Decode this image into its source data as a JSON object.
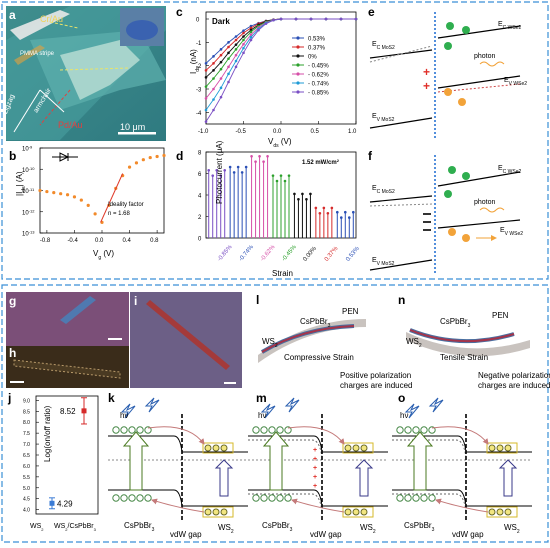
{
  "panels": {
    "a": {
      "label": "a",
      "texts": {
        "crau": "Cr/Au",
        "pmma": "PMMA stripe",
        "zigzag": "zigzag",
        "armchair": "armchair",
        "pdau": "Pd/Au",
        "scale": "10 μm"
      }
    },
    "b": {
      "label": "b",
      "ylabel": "|I",
      "ylabel_sub": "ds",
      "ylabel_tail": "| (A)",
      "xlabel": "V",
      "xlabel_sub": "g",
      "xlabel_tail": " (V)",
      "yticks": [
        "10",
        "10",
        "10",
        "10",
        "10"
      ],
      "ytick_exps": [
        "-9",
        "-10",
        "-11",
        "-12",
        "-13"
      ],
      "xticks": [
        "-0.8",
        "-0.4",
        "0.0",
        "0.4",
        "0.8"
      ],
      "annotation_line1": "Ideality factor",
      "annotation_line2": "n = 1.68"
    },
    "c": {
      "label": "c",
      "title": "Dark",
      "ylabel": "I",
      "ylabel_sub": "ds",
      "ylabel_tail": " (nA)",
      "xlabel": "V",
      "xlabel_sub": "ds",
      "xlabel_tail": " (V)",
      "yticks": [
        "0",
        "-1",
        "-2",
        "-3",
        "-4"
      ],
      "xticks": [
        "-1.0",
        "-0.5",
        "0.0",
        "0.5",
        "1.0"
      ]
    },
    "d": {
      "label": "d",
      "power": "1.52 mW/cm",
      "power_sup": "2",
      "ylabel": "Photocurrent (μA)",
      "xlabel": "Strain",
      "yticks": [
        "0",
        "2",
        "4",
        "6",
        "8"
      ],
      "categories": [
        "-0.85%",
        "-0.74%",
        "-0.62%",
        "-0.45%",
        "0.00%",
        "0.37%",
        "0.53%"
      ]
    },
    "e": {
      "label": "e",
      "ec_mos2": "E",
      "ec_mos2_sub": "C MoS2",
      "ec_wse2": "E",
      "ec_wse2_sub": "C WSe2",
      "ev_wse2": "E",
      "ev_wse2_sub": "V WSe2",
      "ev_mos2": "E",
      "ev_mos2_sub": "V MoS2",
      "photon": "photon"
    },
    "f": {
      "label": "f",
      "ec_mos2": "E",
      "ec_mos2_sub": "C MoS2",
      "ec_wse2": "E",
      "ec_wse2_sub": "C WSe2",
      "ev_wse2": "E",
      "ev_wse2_sub": "V WSe2",
      "ev_mos2": "E",
      "ev_mos2_sub": "V MoS2",
      "photon": "photon"
    },
    "g": {
      "label": "g"
    },
    "h": {
      "label": "h"
    },
    "i": {
      "label": "i"
    },
    "j": {
      "label": "j",
      "ylabel": "Log(on/off ratio)",
      "yticks": [
        "4.0",
        "4.5",
        "5.0",
        "5.5",
        "6.0",
        "6.5",
        "7.0",
        "7.5",
        "8.0",
        "8.5",
        "9.0"
      ],
      "xticks": [
        "WS",
        "WS"
      ],
      "xtick_sub": "2",
      "xtick2_tail": "/CsPbBr",
      "xtick2_sub": "3",
      "value_labels": [
        "4.29",
        "8.52"
      ]
    },
    "k": {
      "label": "k",
      "hv": "hν",
      "cspbbr3": "CsPbBr",
      "cspbbr3_sub": "3",
      "vdw": "vdW gap",
      "ws2": "WS",
      "ws2_sub": "2"
    },
    "l": {
      "label": "l",
      "cspbbr3": "CsPbBr",
      "cspbbr3_sub": "3",
      "pen": "PEN",
      "ws2": "WS",
      "ws2_sub": "2",
      "strain": "Compressive Strain"
    },
    "m": {
      "label": "m",
      "hv": "hν",
      "note_line1": "Positive polarization",
      "note_line2": "charges are induced",
      "cspbbr3": "CsPbBr",
      "cspbbr3_sub": "3",
      "vdw": "vdW gap",
      "ws2": "WS",
      "ws2_sub": "2"
    },
    "n": {
      "label": "n",
      "cspbbr3": "CsPbBr",
      "cspbbr3_sub": "3",
      "pen": "PEN",
      "ws2": "WS",
      "ws2_sub": "2",
      "strain": "Tensile Strain"
    },
    "o": {
      "label": "o",
      "hv": "hν",
      "note_line1": "Negative polarization",
      "note_line2": "charges are induced",
      "cspbbr3": "CsPbBr",
      "cspbbr3_sub": "3",
      "vdw": "vdW gap",
      "ws2": "WS",
      "ws2_sub": "2"
    }
  },
  "colors": {
    "frame": "#3a8fd6",
    "micro_teal": "#4a9a9a",
    "gold": "#e8a13a",
    "green_electron": "#2fae4f",
    "orange_hole": "#f2a33a",
    "red_plus": "#e0302a"
  },
  "chart_data": [
    {
      "type": "scatter",
      "panel": "b",
      "x": [
        -0.9,
        -0.8,
        -0.7,
        -0.6,
        -0.5,
        -0.4,
        -0.3,
        -0.2,
        -0.1,
        0.0,
        0.1,
        0.2,
        0.3,
        0.4,
        0.5,
        0.6,
        0.7,
        0.8,
        0.9
      ],
      "y": [
        -11.0,
        -11.05,
        -11.1,
        -11.15,
        -11.2,
        -11.3,
        -11.45,
        -11.7,
        -12.1,
        -12.5,
        -11.7,
        -10.9,
        -10.3,
        -9.9,
        -9.7,
        -9.55,
        -9.45,
        -9.4,
        -9.35
      ],
      "xlim": [
        -0.9,
        0.9
      ],
      "ylim": [
        -13,
        -9
      ],
      "log_scale_y": true,
      "fit_line": {
        "x": [
          -0.02,
          0.3
        ],
        "y": [
          -12.5,
          -10.2
        ]
      }
    },
    {
      "type": "line",
      "panel": "c",
      "x": [
        -1.0,
        -0.9,
        -0.8,
        -0.7,
        -0.6,
        -0.5,
        -0.4,
        -0.3,
        -0.2,
        -0.1,
        0.0,
        0.2,
        0.4,
        0.6,
        0.8,
        1.0
      ],
      "series": [
        {
          "name": "0.53%",
          "color": "#2a4fb5",
          "values": [
            -1.9,
            -1.6,
            -1.3,
            -1.0,
            -0.75,
            -0.5,
            -0.3,
            -0.18,
            -0.08,
            -0.03,
            0,
            0,
            0,
            0,
            0,
            0
          ]
        },
        {
          "name": "0.37%",
          "color": "#d62a2a",
          "values": [
            -2.2,
            -1.9,
            -1.55,
            -1.2,
            -0.9,
            -0.6,
            -0.38,
            -0.2,
            -0.09,
            -0.03,
            0,
            0,
            0,
            0,
            0,
            0
          ]
        },
        {
          "name": "0%",
          "color": "#111111",
          "values": [
            -2.5,
            -2.2,
            -1.85,
            -1.45,
            -1.1,
            -0.75,
            -0.47,
            -0.25,
            -0.1,
            -0.03,
            0,
            0,
            0,
            0,
            0,
            0
          ]
        },
        {
          "name": "- 0.45%",
          "color": "#2ca02c",
          "values": [
            -2.9,
            -2.55,
            -2.15,
            -1.7,
            -1.3,
            -0.9,
            -0.55,
            -0.3,
            -0.12,
            -0.04,
            0,
            0,
            0,
            0,
            0,
            0
          ]
        },
        {
          "name": "- 0.62%",
          "color": "#d64fa8",
          "values": [
            -3.4,
            -3.0,
            -2.55,
            -2.05,
            -1.55,
            -1.08,
            -0.67,
            -0.36,
            -0.15,
            -0.04,
            0,
            0,
            0,
            0,
            0,
            0
          ]
        },
        {
          "name": "- 0.74%",
          "color": "#1f9bd6",
          "values": [
            -3.9,
            -3.45,
            -2.95,
            -2.35,
            -1.8,
            -1.25,
            -0.78,
            -0.42,
            -0.17,
            -0.05,
            0,
            0,
            0,
            0,
            0,
            0
          ]
        },
        {
          "name": "- 0.85%",
          "color": "#7a4fc4",
          "values": [
            -4.4,
            -3.9,
            -3.35,
            -2.7,
            -2.05,
            -1.45,
            -0.9,
            -0.48,
            -0.2,
            -0.05,
            0,
            0,
            0,
            0,
            0,
            0
          ]
        }
      ],
      "xlim": [
        -1.0,
        1.0
      ],
      "ylim": [
        -4.5,
        0.3
      ]
    },
    {
      "type": "bar",
      "panel": "d",
      "categories": [
        "-0.85%",
        "-0.74%",
        "-0.62%",
        "-0.45%",
        "0.00%",
        "0.37%",
        "0.53%"
      ],
      "series_colors": [
        "#7a4fc4",
        "#2a4fb5",
        "#d64fa8",
        "#2ca02c",
        "#111111",
        "#d62a2a",
        "#2a4fb5"
      ],
      "values": [
        6.0,
        6.3,
        7.3,
        5.5,
        3.8,
        2.5,
        2.1
      ],
      "ylim": [
        0,
        8
      ]
    },
    {
      "type": "scatter",
      "panel": "j",
      "categories": [
        "WS2",
        "WS2/CsPbBr3"
      ],
      "values": [
        4.29,
        8.52
      ],
      "errors": [
        0.25,
        0.6
      ],
      "ylim": [
        3.8,
        9.2
      ]
    }
  ]
}
